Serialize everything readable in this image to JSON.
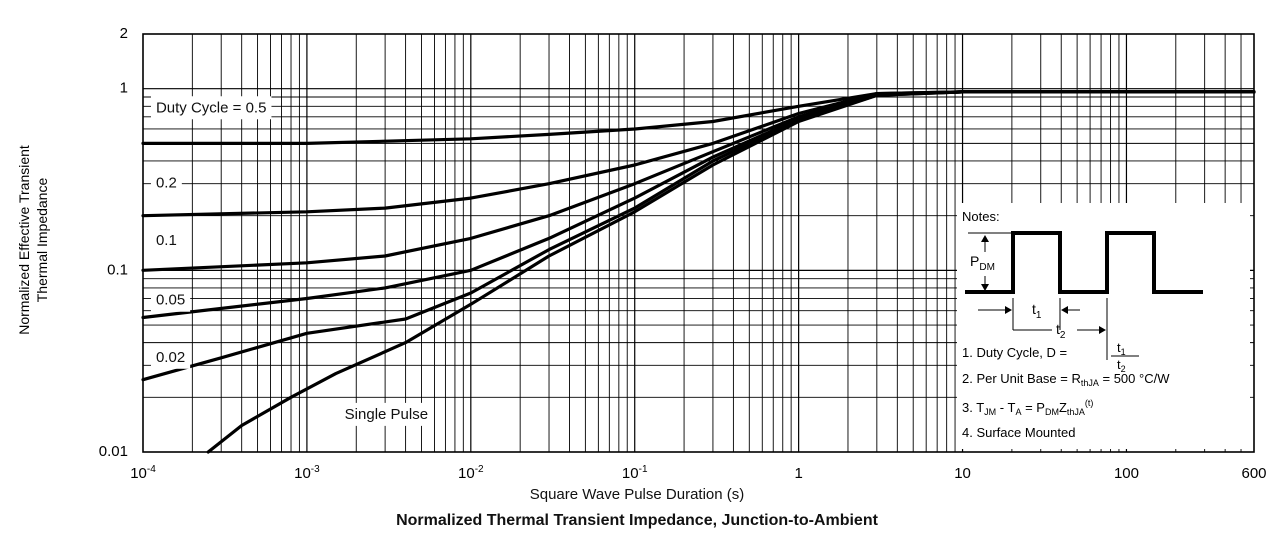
{
  "figure": {
    "title": "Normalized Thermal Transient Impedance, Junction-to-Ambient"
  },
  "chart_data": {
    "type": "line",
    "scale": {
      "x": "log",
      "y": "log"
    },
    "grid": true,
    "xlabel": "Square Wave Pulse Duration (s)",
    "ylabel_lines": [
      "Normalized Effective Transient",
      "Thermal Impedance"
    ],
    "xlim": [
      0.0001,
      600
    ],
    "ylim": [
      0.01,
      2
    ],
    "x_ticks": [
      {
        "value": 0.0001,
        "base": "10",
        "exp": "-4"
      },
      {
        "value": 0.001,
        "base": "10",
        "exp": "-3"
      },
      {
        "value": 0.01,
        "base": "10",
        "exp": "-2"
      },
      {
        "value": 0.1,
        "base": "10",
        "exp": "-1"
      },
      {
        "value": 1,
        "base": "1",
        "exp": ""
      },
      {
        "value": 10,
        "base": "10",
        "exp": ""
      },
      {
        "value": 100,
        "base": "100",
        "exp": ""
      },
      {
        "value": 600,
        "base": "600",
        "exp": ""
      }
    ],
    "y_ticks": [
      {
        "value": 0.01,
        "label": "0.01"
      },
      {
        "value": 0.1,
        "label": "0.1"
      },
      {
        "value": 1,
        "label": "1"
      },
      {
        "value": 2,
        "label": "2"
      }
    ],
    "series": [
      {
        "name": "Duty Cycle = 0.5",
        "points": [
          [
            0.0001,
            0.5
          ],
          [
            0.001,
            0.5
          ],
          [
            0.01,
            0.53
          ],
          [
            0.03,
            0.56
          ],
          [
            0.1,
            0.6
          ],
          [
            0.3,
            0.66
          ],
          [
            1,
            0.8
          ],
          [
            3,
            0.94
          ],
          [
            10,
            0.96
          ],
          [
            100,
            0.96
          ],
          [
            600,
            0.96
          ]
        ]
      },
      {
        "name": "0.2",
        "points": [
          [
            0.0001,
            0.2
          ],
          [
            0.001,
            0.21
          ],
          [
            0.003,
            0.22
          ],
          [
            0.01,
            0.25
          ],
          [
            0.03,
            0.3
          ],
          [
            0.1,
            0.38
          ],
          [
            0.3,
            0.5
          ],
          [
            1,
            0.73
          ],
          [
            3,
            0.94
          ],
          [
            10,
            0.96
          ],
          [
            100,
            0.96
          ],
          [
            600,
            0.96
          ]
        ]
      },
      {
        "name": "0.1",
        "points": [
          [
            0.0001,
            0.1
          ],
          [
            0.001,
            0.11
          ],
          [
            0.003,
            0.12
          ],
          [
            0.01,
            0.15
          ],
          [
            0.03,
            0.2
          ],
          [
            0.1,
            0.3
          ],
          [
            0.3,
            0.45
          ],
          [
            1,
            0.7
          ],
          [
            3,
            0.93
          ],
          [
            10,
            0.96
          ],
          [
            100,
            0.96
          ],
          [
            600,
            0.96
          ]
        ]
      },
      {
        "name": "0.05",
        "points": [
          [
            0.0001,
            0.055
          ],
          [
            0.001,
            0.07
          ],
          [
            0.003,
            0.08
          ],
          [
            0.01,
            0.1
          ],
          [
            0.03,
            0.15
          ],
          [
            0.1,
            0.25
          ],
          [
            0.3,
            0.42
          ],
          [
            1,
            0.68
          ],
          [
            3,
            0.93
          ],
          [
            10,
            0.96
          ],
          [
            100,
            0.96
          ],
          [
            600,
            0.96
          ]
        ]
      },
      {
        "name": "0.02",
        "points": [
          [
            0.0001,
            0.025
          ],
          [
            0.0003,
            0.033
          ],
          [
            0.001,
            0.045
          ],
          [
            0.004,
            0.054
          ],
          [
            0.01,
            0.075
          ],
          [
            0.03,
            0.13
          ],
          [
            0.1,
            0.22
          ],
          [
            0.3,
            0.4
          ],
          [
            1,
            0.67
          ],
          [
            3,
            0.92
          ],
          [
            10,
            0.96
          ],
          [
            100,
            0.96
          ],
          [
            600,
            0.96
          ]
        ]
      },
      {
        "name": "Single Pulse",
        "points": [
          [
            0.00025,
            0.01
          ],
          [
            0.0004,
            0.014
          ],
          [
            0.0008,
            0.02
          ],
          [
            0.0015,
            0.027
          ],
          [
            0.004,
            0.04
          ],
          [
            0.01,
            0.065
          ],
          [
            0.03,
            0.12
          ],
          [
            0.1,
            0.21
          ],
          [
            0.3,
            0.38
          ],
          [
            1,
            0.66
          ],
          [
            3,
            0.92
          ],
          [
            10,
            0.96
          ],
          [
            100,
            0.96
          ],
          [
            600,
            0.96
          ]
        ]
      }
    ],
    "curve_labels": [
      {
        "text": "Duty Cycle = 0.5",
        "x": 0.00012,
        "y": 0.78
      },
      {
        "text": "0.2",
        "x": 0.00012,
        "y": 0.3
      },
      {
        "text": "0.1",
        "x": 0.00012,
        "y": 0.145
      },
      {
        "text": "0.05",
        "x": 0.00012,
        "y": 0.068
      },
      {
        "text": "0.02",
        "x": 0.00012,
        "y": 0.033
      },
      {
        "text": "Single Pulse",
        "x": 0.0017,
        "y": 0.016
      }
    ]
  },
  "notes": {
    "header": "Notes:",
    "pdm_label": "P",
    "pdm_sub": "DM",
    "t1_label": "t",
    "t1_sub": "1",
    "t2_label": "t",
    "t2_sub": "2",
    "note1_prefix": "1. Duty Cycle, D =",
    "note2_prefix": "2. Per Unit Base = R",
    "note2_sub": "thJA",
    "note2_suffix": " = 500 °C/W",
    "note3_a": "3. T",
    "note3_a_sub": "JM",
    "note3_b": " - T",
    "note3_b_sub": "A",
    "note3_c": " = P",
    "note3_c_sub": "DM",
    "note3_d": "Z",
    "note3_d_sub": "thJA",
    "note3_sup": "(t)",
    "note4": "4. Surface Mounted"
  }
}
